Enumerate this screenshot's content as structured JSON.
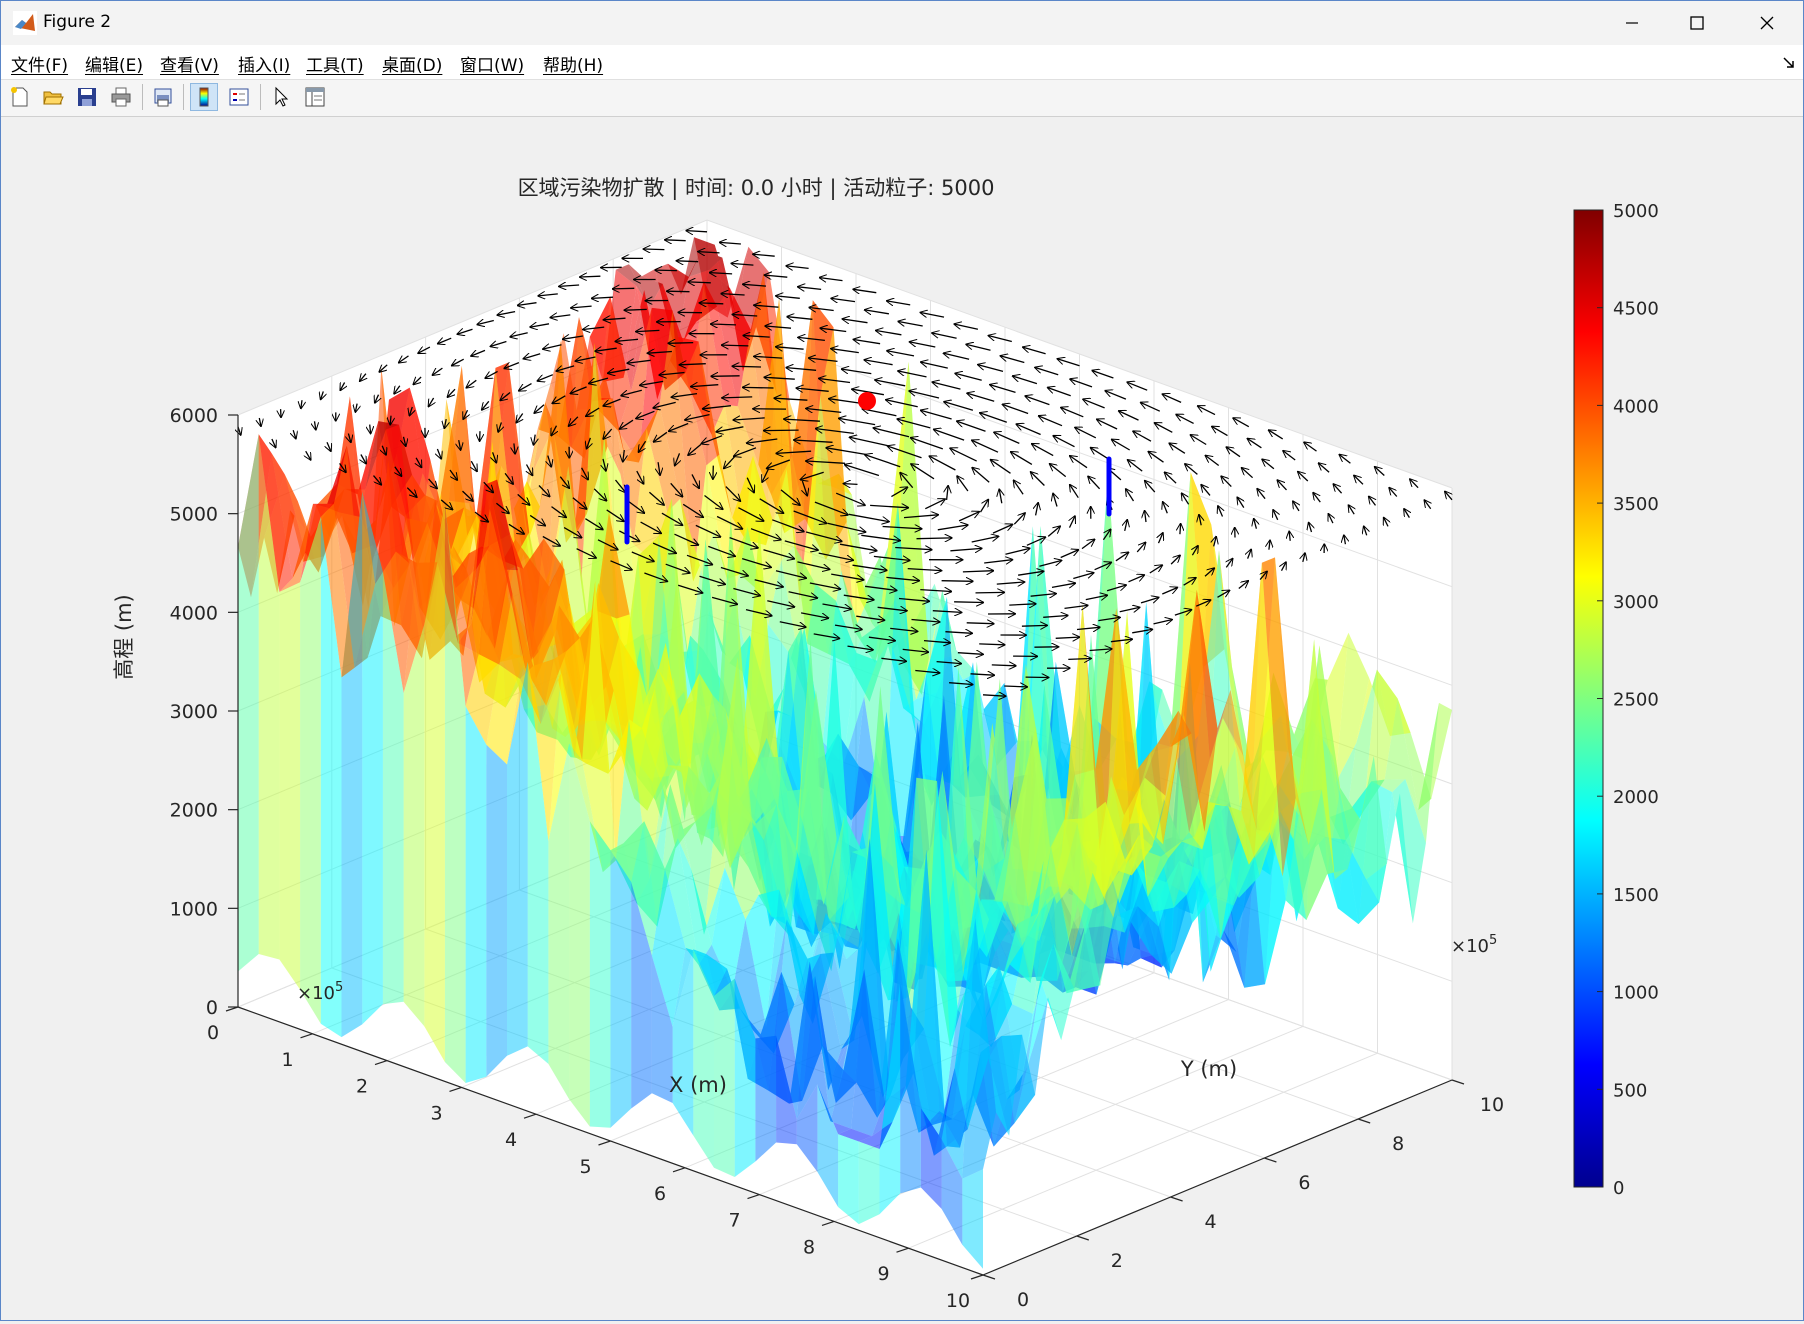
{
  "window": {
    "title": "Figure 2",
    "controls": {
      "minimize": "minimize",
      "maximize": "maximize",
      "close": "close"
    }
  },
  "menu": [
    {
      "label": "文件(F)"
    },
    {
      "label": "编辑(E)"
    },
    {
      "label": "查看(V)"
    },
    {
      "label": "插入(I)"
    },
    {
      "label": "工具(T)"
    },
    {
      "label": "桌面(D)"
    },
    {
      "label": "窗口(W)"
    },
    {
      "label": "帮助(H)"
    }
  ],
  "toolbar": {
    "buttons": [
      "new-figure-icon",
      "open-file-icon",
      "save-icon",
      "print-icon",
      "print-preview-icon",
      "toggle-colorbar-icon",
      "insert-legend-icon",
      "pointer-icon",
      "property-inspector-icon"
    ]
  },
  "plot": {
    "title": "区域污染物扩散 | 时间: 0.0 小时 | 活动粒子: 5000",
    "x_axis": {
      "label": "X (m)",
      "multiplier": "×10",
      "multiplier_exp": "5",
      "ticks": [
        "0",
        "1",
        "2",
        "3",
        "4",
        "5",
        "6",
        "7",
        "8",
        "9",
        "10"
      ]
    },
    "y_axis": {
      "label": "Y (m)",
      "multiplier": "×10",
      "multiplier_exp": "5",
      "ticks": [
        "0",
        "2",
        "4",
        "6",
        "8",
        "10"
      ]
    },
    "z_axis": {
      "label": "高程 (m)",
      "ticks": [
        "0",
        "1000",
        "2000",
        "3000",
        "4000",
        "5000",
        "6000"
      ]
    },
    "colorbar": {
      "ticks": [
        "0",
        "500",
        "1000",
        "1500",
        "2000",
        "2500",
        "3000",
        "3500",
        "4000",
        "4500",
        "5000"
      ],
      "colormap": "jet"
    },
    "colors": {
      "source_marker": "#ff0000",
      "monitor_marker": "#0000ff",
      "arrows": "#000000"
    }
  }
}
